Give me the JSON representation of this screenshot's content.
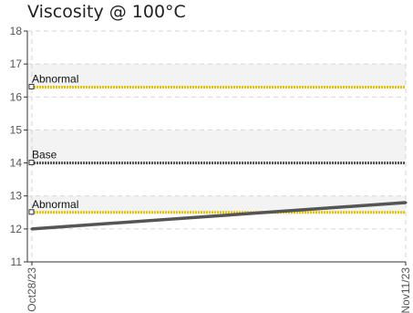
{
  "chart_data": {
    "type": "line",
    "title": "Viscosity @ 100°C",
    "xlabel": "",
    "ylabel": "",
    "ylim": [
      11,
      18
    ],
    "yticks": [
      11,
      12,
      13,
      14,
      15,
      16,
      17,
      18
    ],
    "categories": [
      "Oct28/23",
      "Nov11/23"
    ],
    "grid": true,
    "series": [
      {
        "values": [
          12.0,
          12.8
        ],
        "color": "#555555"
      }
    ],
    "reference_lines": [
      {
        "label": "Abnormal",
        "value": 16.3,
        "color": "#e8c200"
      },
      {
        "label": "Base",
        "value": 14.0,
        "color": "#555555"
      },
      {
        "label": "Abnormal",
        "value": 12.5,
        "color": "#e8c200"
      }
    ],
    "bands": [
      {
        "from": 16.3,
        "to": 17.0,
        "color": "#f3f3f3"
      },
      {
        "from": 14.0,
        "to": 15.0,
        "color": "#f3f3f3"
      },
      {
        "from": 12.5,
        "to": 13.0,
        "color": "#f3f3f3"
      }
    ]
  }
}
